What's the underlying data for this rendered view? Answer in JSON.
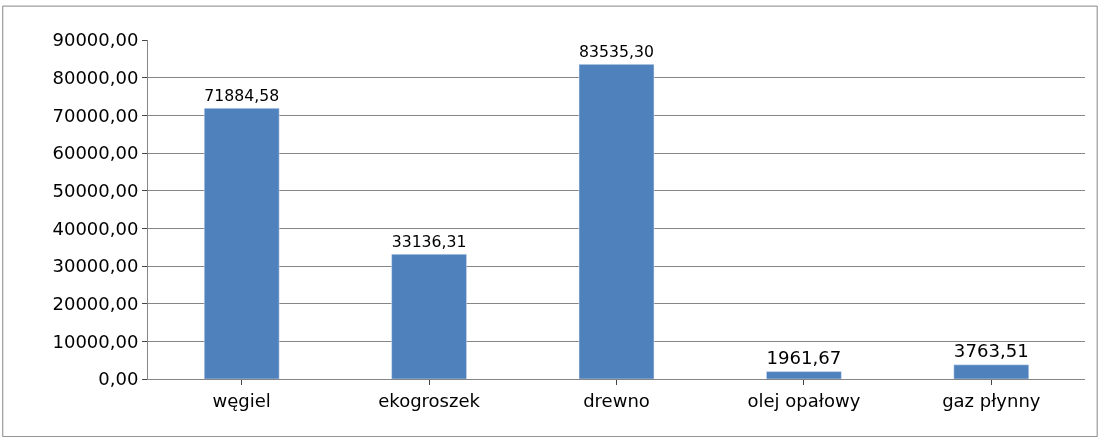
{
  "chart_data": {
    "type": "bar",
    "categories": [
      "węgiel",
      "ekogroszek",
      "drewno",
      "olej opałowy",
      "gaz płynny"
    ],
    "values": [
      71884.58,
      33136.31,
      83535.3,
      1961.67,
      3763.51
    ],
    "value_labels": [
      "71884,58",
      "33136,31",
      "83535,30",
      "1961,67",
      "3763,51"
    ],
    "color": "#4f81bd",
    "ylim": [
      0,
      90000
    ],
    "yticks": [
      {
        "value": 0,
        "label": "0,00"
      },
      {
        "value": 10000,
        "label": "10000,00"
      },
      {
        "value": 20000,
        "label": "20000,00"
      },
      {
        "value": 30000,
        "label": "30000,00"
      },
      {
        "value": 40000,
        "label": "40000,00"
      },
      {
        "value": 50000,
        "label": "50000,00"
      },
      {
        "value": 60000,
        "label": "60000,00"
      },
      {
        "value": 70000,
        "label": "70000,00"
      },
      {
        "value": 80000,
        "label": "80000,00"
      },
      {
        "value": 90000,
        "label": "90000,00"
      }
    ],
    "grid": "y"
  }
}
